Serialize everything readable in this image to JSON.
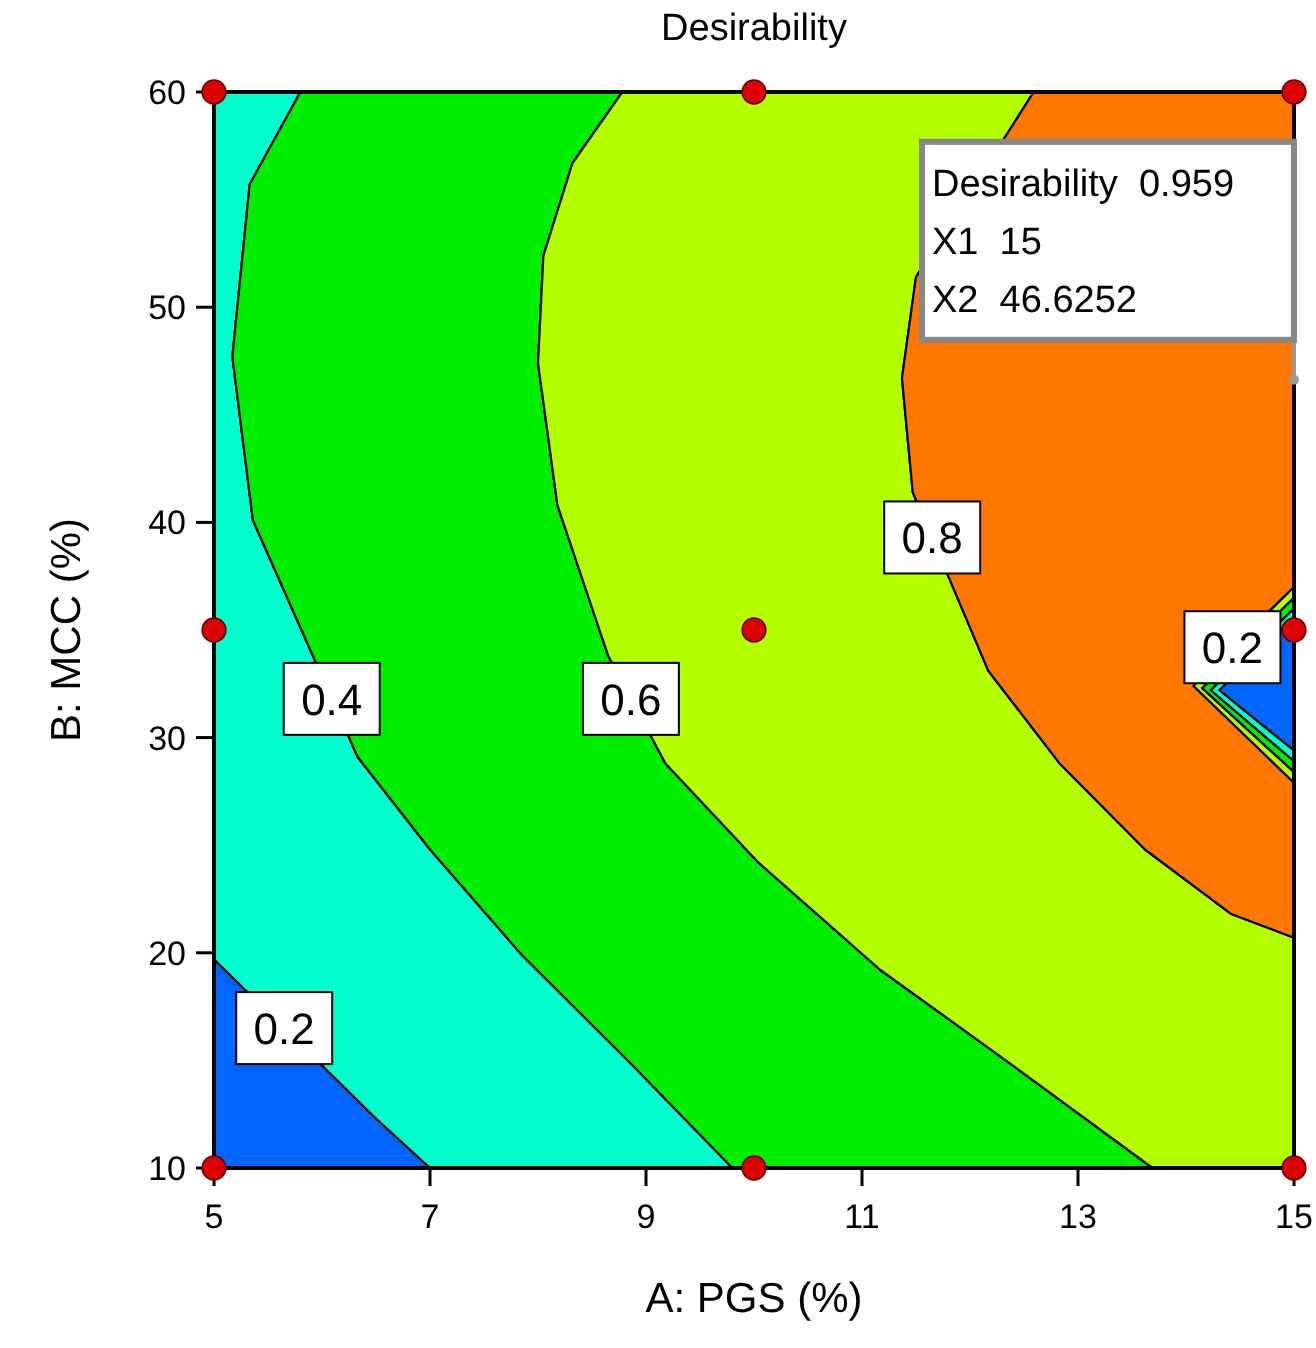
{
  "chart_data": {
    "type": "area",
    "title": "Desirability",
    "xlabel": "A: PGS (%)",
    "ylabel": "B: MCC (%)",
    "xlim": [
      5,
      15
    ],
    "ylim": [
      10,
      60
    ],
    "xticks": [
      5,
      7,
      9,
      11,
      13,
      15
    ],
    "yticks": [
      10,
      20,
      30,
      40,
      50,
      60
    ],
    "grid": false,
    "series": [
      {
        "color": "#0066ff",
        "x": [
          5,
          6.5,
          7,
          5
        ],
        "values": [
          19.7,
          12.3,
          10,
          10
        ]
      },
      {
        "color": "#00ffcc",
        "x": [
          5,
          5,
          6.5,
          7,
          9.8,
          8.85,
          7.85,
          7,
          6.33,
          5.36,
          5.17,
          5.33,
          5.8
        ],
        "values": [
          60,
          19.7,
          12.3,
          10,
          10,
          14.9,
          19.9,
          24.8,
          29.1,
          40.1,
          47.7,
          55.7,
          60
        ]
      },
      {
        "color": "#00ee00",
        "x": [
          5.8,
          5.33,
          5.17,
          5.36,
          6.33,
          7,
          7.85,
          8.85,
          9.8,
          13.69,
          12.36,
          11.17,
          10.04,
          9.18,
          8.65,
          8.18,
          8.0,
          8.05,
          8.32,
          8.78
        ],
        "values": [
          60,
          55.7,
          47.7,
          40.1,
          29.1,
          24.8,
          19.9,
          14.9,
          10,
          10,
          14.9,
          19.2,
          24.2,
          28.8,
          33.8,
          40.8,
          47.4,
          52.4,
          56.7,
          60
        ]
      },
      {
        "color": "#b3ff00",
        "x": [
          8.78,
          8.32,
          8.05,
          8.0,
          8.18,
          8.65,
          9.18,
          10.04,
          11.17,
          12.36,
          13.69,
          15,
          15,
          14.42,
          13.62,
          12.83,
          12.17,
          11.47,
          11.37,
          11.5,
          12.59
        ],
        "values": [
          60,
          56.7,
          52.4,
          47.4,
          40.8,
          33.8,
          28.8,
          24.2,
          19.2,
          14.9,
          10,
          10,
          20.7,
          21.8,
          24.8,
          28.8,
          33.1,
          41.4,
          46.7,
          51.4,
          60
        ]
      },
      {
        "color": "#ff7700",
        "x": [
          12.59,
          11.5,
          11.37,
          11.47,
          12.17,
          12.83,
          13.62,
          14.42,
          15,
          15,
          14.07,
          15,
          15
        ],
        "values": [
          60,
          51.4,
          46.7,
          41.4,
          33.1,
          28.8,
          24.8,
          21.8,
          20.7,
          27.9,
          32.4,
          37,
          60
        ]
      },
      {
        "color": "#b3ff00",
        "x": [
          15,
          14.07,
          15,
          15,
          14.15,
          15
        ],
        "values": [
          37,
          32.4,
          27.9,
          28.4,
          32.3,
          36.5
        ]
      },
      {
        "color": "#00ee00",
        "x": [
          15,
          14.15,
          15,
          15,
          14.23,
          15
        ],
        "values": [
          36.5,
          32.3,
          28.4,
          28.9,
          32.2,
          36
        ]
      },
      {
        "color": "#00ffcc",
        "x": [
          15,
          14.23,
          15,
          15,
          14.31,
          15
        ],
        "values": [
          36,
          32.2,
          28.9,
          29.4,
          32.2,
          35.6
        ]
      },
      {
        "color": "#0066ff",
        "x": [
          15,
          14.31,
          15
        ],
        "values": [
          35.6,
          32.2,
          29.4
        ]
      },
      {
        "type": "scatter",
        "marker": "circle",
        "color": "#dd0000",
        "x": [
          5,
          5,
          5,
          10,
          10,
          10,
          15,
          15,
          15
        ],
        "values": [
          10,
          35,
          60,
          10,
          35,
          60,
          10,
          35,
          60
        ]
      }
    ],
    "annotations": [
      {
        "text": "0.2",
        "x": 5.65,
        "y": 16.5
      },
      {
        "text": "0.4",
        "x": 6.09,
        "y": 31.8
      },
      {
        "text": "0.6",
        "x": 8.86,
        "y": 31.8
      },
      {
        "text": "0.8",
        "x": 11.65,
        "y": 39.3
      },
      {
        "text": "0.2",
        "x": 14.43,
        "y": 34.2
      },
      {
        "text": "Desirability  0.959\nX1  15\nX2  46.6252",
        "x": 15,
        "y": 46.6252
      }
    ]
  }
}
